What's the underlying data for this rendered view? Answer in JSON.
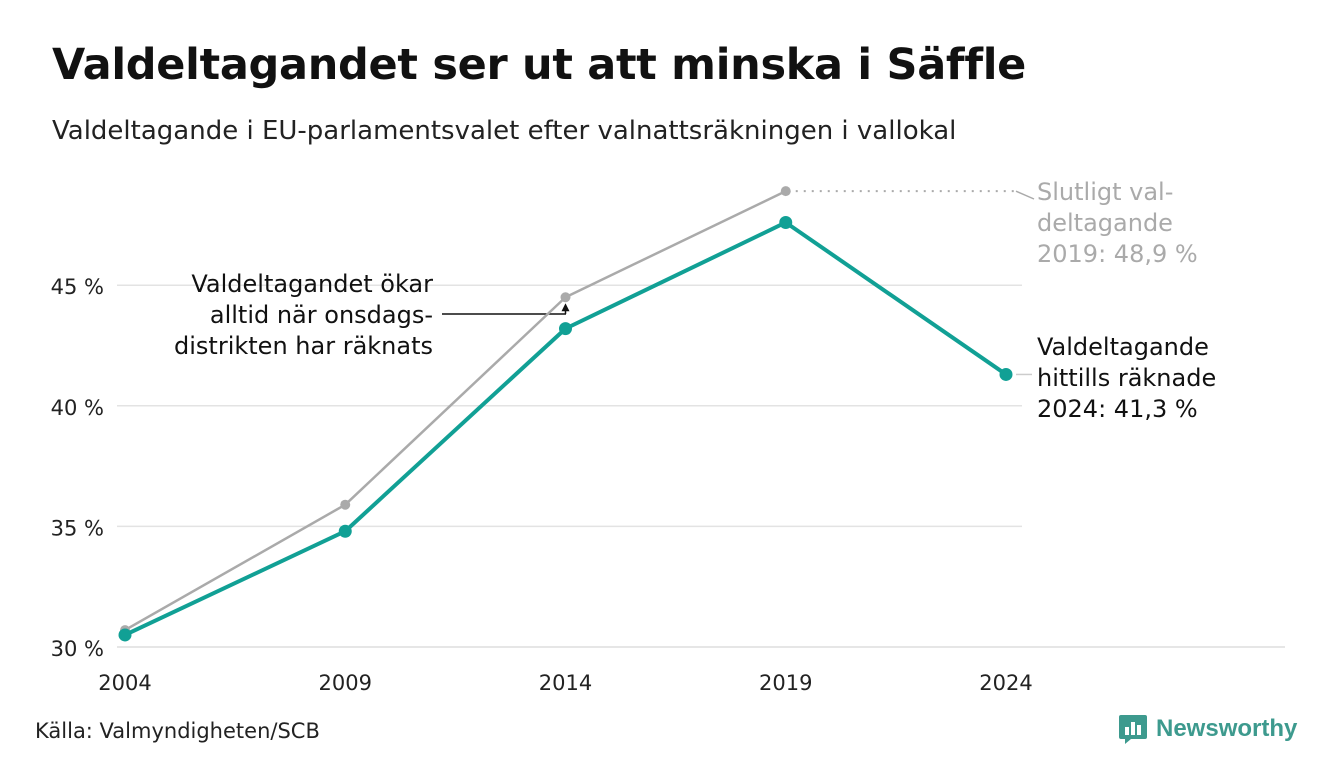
{
  "header": {
    "title": "Valdeltagandet ser ut att minska i Säffle",
    "subtitle": "Valdeltagande i EU-parlamentsvalet efter valnattsräkningen i vallokal"
  },
  "footer": {
    "source": "Källa: Valmyndigheten/SCB",
    "brand": "Newsworthy"
  },
  "chart_data": {
    "type": "line",
    "title": "Valdeltagandet ser ut att minska i Säffle",
    "subtitle": "Valdeltagande i EU-parlamentsvalet efter valnattsräkningen i vallokal",
    "xlabel": "",
    "ylabel": "",
    "x": [
      "2004",
      "2009",
      "2014",
      "2019",
      "2024"
    ],
    "ylim": [
      30,
      50
    ],
    "yticks": [
      30,
      35,
      40,
      45
    ],
    "ytick_labels": [
      "30 %",
      "35 %",
      "40 %",
      "45 %"
    ],
    "grid": true,
    "series": [
      {
        "key": "final",
        "values": [
          30.7,
          35.9,
          44.5,
          48.9,
          null
        ],
        "color": "#aaaaaa"
      },
      {
        "key": "preliminary",
        "values": [
          30.5,
          34.8,
          43.2,
          47.6,
          41.3
        ],
        "color": "#11a095"
      }
    ],
    "annotations": [
      {
        "key": "left",
        "lines": [
          "Valdeltagandet ökar",
          "alltid när onsdags-",
          "distrikten har räknats"
        ],
        "color": "#111111"
      },
      {
        "key": "final",
        "lines": [
          "Slutligt val-",
          "deltagande",
          "2019: 48,9 %"
        ],
        "color": "#aaaaaa"
      },
      {
        "key": "current",
        "lines": [
          "Valdeltagande",
          "hittills räknade",
          "2024: 41,3 %"
        ],
        "color": "#111111"
      }
    ]
  }
}
